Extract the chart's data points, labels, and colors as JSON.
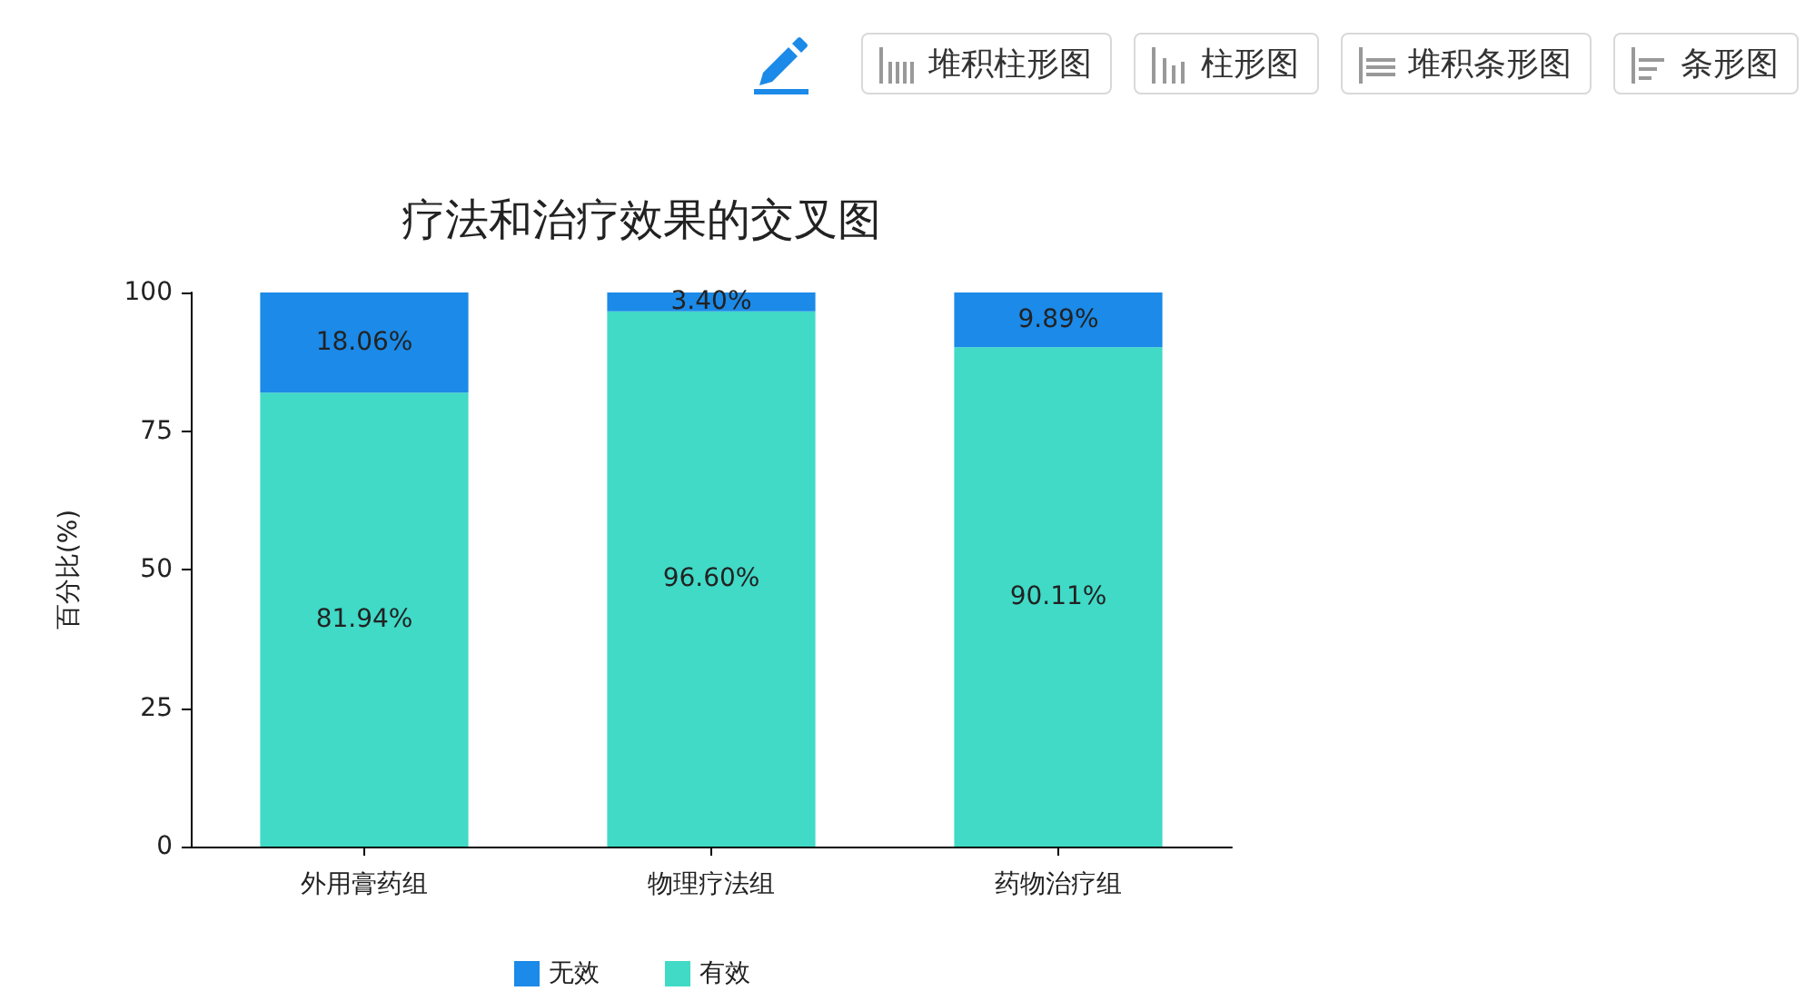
{
  "chart_data": {
    "type": "bar",
    "title": "疗法和治疗效果的交叉图",
    "ylabel": "百分比(%)",
    "categories": [
      "外用膏药组",
      "物理疗法组",
      "药物治疗组"
    ],
    "series": [
      {
        "name": "有效",
        "color": "#40dac7",
        "values": [
          81.94,
          96.6,
          90.11
        ],
        "value_labels": [
          "81.94%",
          "96.60%",
          "90.11%"
        ]
      },
      {
        "name": "无效",
        "color": "#1b8ae8",
        "values": [
          18.06,
          3.4,
          9.89
        ],
        "value_labels": [
          "18.06%",
          "3.40%",
          "9.89%"
        ]
      }
    ],
    "stacked": true,
    "ylim": [
      0,
      100
    ],
    "yticks": [
      0,
      25,
      50,
      75,
      100
    ],
    "legend": "bottom",
    "annotations": [
      "堆积柱形图",
      "柱形图",
      "堆积条形图",
      "条形图"
    ]
  }
}
